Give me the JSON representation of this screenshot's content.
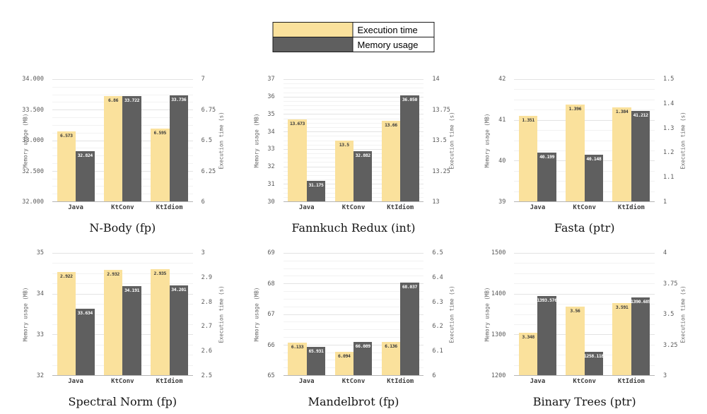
{
  "legend": {
    "items": [
      {
        "label": "Execution time",
        "color": "#FAE19C"
      },
      {
        "label": "Memory usage",
        "color": "#5F5F5F"
      }
    ]
  },
  "colors": {
    "execution_time_bar": "#FAE19C",
    "memory_usage_bar": "#5F5F5F"
  },
  "chart_data": [
    {
      "type": "bar",
      "title": "N-Body (fp)",
      "categories": [
        "Java",
        "KtConv",
        "KtIdiom"
      ],
      "left_axis": {
        "label": "Memory usage (MB)",
        "min": 32,
        "max": 34,
        "ticks": [
          "34.000",
          "33.500",
          "33.000",
          "32.500",
          "32.000"
        ]
      },
      "right_axis": {
        "label": "Execution time (s)",
        "min": 6,
        "max": 7,
        "ticks": [
          "7",
          "6.75",
          "6.5",
          "6.25",
          "6"
        ]
      },
      "series": [
        {
          "name": "Execution time",
          "axis": "right",
          "values": [
            6.573,
            6.86,
            6.595
          ],
          "labels": [
            "6.573",
            "6.86",
            "6.595"
          ]
        },
        {
          "name": "Memory usage",
          "axis": "left",
          "values": [
            32.824,
            33.722,
            33.736
          ],
          "labels": [
            "32.824",
            "33.722",
            "33.736"
          ]
        }
      ]
    },
    {
      "type": "bar",
      "title": "Fannkuch Redux (int)",
      "categories": [
        "Java",
        "KtConv",
        "KtIdiom"
      ],
      "left_axis": {
        "label": "Memory usage (MB)",
        "min": 30,
        "max": 37,
        "ticks": [
          "37",
          "36",
          "35",
          "34",
          "33",
          "32",
          "31",
          "30"
        ]
      },
      "right_axis": {
        "label": "Execution time (s)",
        "min": 13,
        "max": 14,
        "ticks": [
          "14",
          "13.75",
          "13.5",
          "13.25",
          "13"
        ]
      },
      "series": [
        {
          "name": "Execution time",
          "axis": "right",
          "values": [
            13.673,
            13.5,
            13.66
          ],
          "labels": [
            "13.673",
            "13.5",
            "13.66"
          ]
        },
        {
          "name": "Memory usage",
          "axis": "left",
          "values": [
            31.175,
            32.882,
            36.05
          ],
          "labels": [
            "31.175",
            "32.882",
            "36.050"
          ]
        }
      ]
    },
    {
      "type": "bar",
      "title": "Fasta (ptr)",
      "categories": [
        "Java",
        "KtConv",
        "KtIdiom"
      ],
      "left_axis": {
        "label": "Memory usage (MB)",
        "min": 39,
        "max": 42,
        "ticks": [
          "42",
          "41",
          "40",
          "39"
        ]
      },
      "right_axis": {
        "label": "Execution time (s)",
        "min": 1,
        "max": 1.5,
        "ticks": [
          "1.5",
          "1.4",
          "1.3",
          "1.2",
          "1.1",
          "1"
        ]
      },
      "series": [
        {
          "name": "Execution time",
          "axis": "right",
          "values": [
            1.351,
            1.396,
            1.384
          ],
          "labels": [
            "1.351",
            "1.396",
            "1.384"
          ]
        },
        {
          "name": "Memory usage",
          "axis": "left",
          "values": [
            40.199,
            40.148,
            41.212
          ],
          "labels": [
            "40.199",
            "40.148",
            "41.212"
          ]
        }
      ]
    },
    {
      "type": "bar",
      "title": "Spectral Norm (fp)",
      "categories": [
        "Java",
        "KtConv",
        "KtIdiom"
      ],
      "left_axis": {
        "label": "Memory usage (MB)",
        "min": 32,
        "max": 35,
        "ticks": [
          "35",
          "34",
          "33",
          "32"
        ]
      },
      "right_axis": {
        "label": "Execution time (s)",
        "min": 2.5,
        "max": 3,
        "ticks": [
          "3",
          "2.9",
          "2.8",
          "2.7",
          "2.6",
          "2.5"
        ]
      },
      "series": [
        {
          "name": "Execution time",
          "axis": "right",
          "values": [
            2.922,
            2.932,
            2.935
          ],
          "labels": [
            "2.922",
            "2.932",
            "2.935"
          ]
        },
        {
          "name": "Memory usage",
          "axis": "left",
          "values": [
            33.634,
            34.191,
            34.201
          ],
          "labels": [
            "33.634",
            "34.191",
            "34.201"
          ]
        }
      ]
    },
    {
      "type": "bar",
      "title": "Mandelbrot (fp)",
      "categories": [
        "Java",
        "KtConv",
        "KtIdiom"
      ],
      "left_axis": {
        "label": "Memory usage (MB)",
        "min": 65,
        "max": 69,
        "ticks": [
          "69",
          "68",
          "67",
          "66",
          "65"
        ]
      },
      "right_axis": {
        "label": "Execution time (s)",
        "min": 6,
        "max": 6.5,
        "ticks": [
          "6.5",
          "6.4",
          "6.3",
          "6.2",
          "6.1",
          "6"
        ]
      },
      "series": [
        {
          "name": "Execution time",
          "axis": "right",
          "values": [
            6.133,
            6.094,
            6.136
          ],
          "labels": [
            "6.133",
            "6.094",
            "6.136"
          ]
        },
        {
          "name": "Memory usage",
          "axis": "left",
          "values": [
            65.931,
            66.089,
            68.037
          ],
          "labels": [
            "65.931",
            "66.089",
            "68.037"
          ]
        }
      ]
    },
    {
      "type": "bar",
      "title": "Binary Trees (ptr)",
      "categories": [
        "Java",
        "KtConv",
        "KtIdiom"
      ],
      "left_axis": {
        "label": "Memory usage (MB)",
        "min": 1200,
        "max": 1500,
        "ticks": [
          "1500",
          "1400",
          "1300",
          "1200"
        ]
      },
      "right_axis": {
        "label": "Execution time (s)",
        "min": 3,
        "max": 4,
        "ticks": [
          "4",
          "3.75",
          "3.5",
          "3.25",
          "3"
        ]
      },
      "series": [
        {
          "name": "Execution time",
          "axis": "right",
          "values": [
            3.348,
            3.56,
            3.591
          ],
          "labels": [
            "3.348",
            "3.56",
            "3.591"
          ]
        },
        {
          "name": "Memory usage",
          "axis": "left",
          "values": [
            1393.576,
            1258.118,
            1390.685
          ],
          "labels": [
            "1393.576",
            "1258.118",
            "1390.685"
          ]
        }
      ]
    }
  ]
}
